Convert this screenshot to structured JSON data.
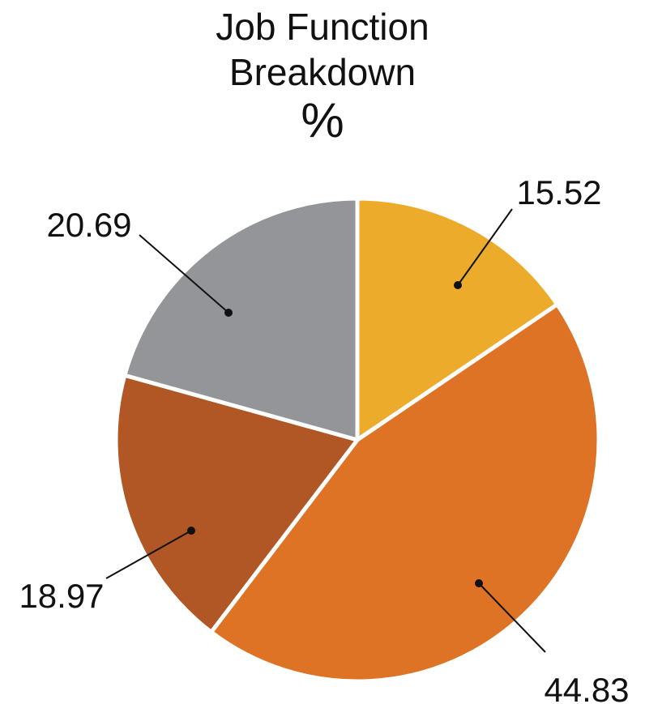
{
  "chart_data": {
    "type": "pie",
    "title": "Job Function Breakdown",
    "title_lines": [
      "Job Function",
      "Breakdown"
    ],
    "subtitle": "%",
    "start_angle_deg": 0,
    "direction": "clockwise",
    "legend": "none",
    "slices": [
      {
        "value": 15.52,
        "label": "15.52",
        "color": "#EDAB2B"
      },
      {
        "value": 44.83,
        "label": "44.83",
        "color": "#DE7326"
      },
      {
        "value": 18.97,
        "label": "18.97",
        "color": "#B15725"
      },
      {
        "value": 20.69,
        "label": "20.69",
        "color": "#939598"
      }
    ]
  }
}
